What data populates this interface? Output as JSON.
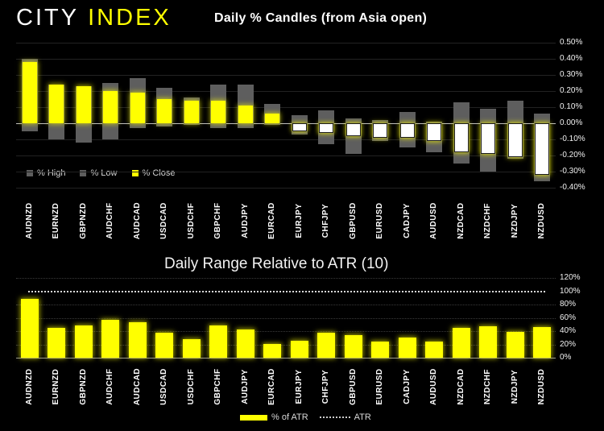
{
  "logo": {
    "part1": "CITY",
    "part2": "INDEX"
  },
  "colors": {
    "background": "#000000",
    "bar_yellow": "#FFFF00",
    "bar_gray": "#5E5E5E",
    "candle_down_fill": "#FFFFFF",
    "zero_line": "#C0C0C0",
    "atr_dotted_line": "#D9D9D9",
    "logo_white": "#FFFFFF",
    "logo_yellow": "#FFFF00"
  },
  "chart_data": [
    {
      "type": "bar",
      "title": "Daily % Candles (from Asia open)",
      "categories": [
        "AUDNZD",
        "EURNZD",
        "GBPNZD",
        "AUDCHF",
        "AUDCAD",
        "USDCAD",
        "USDCHF",
        "GBPCHF",
        "AUDJPY",
        "EURCAD",
        "EURJPY",
        "CHFJPY",
        "GBPUSD",
        "EURUSD",
        "CADJPY",
        "AUDUSD",
        "NZDCAD",
        "NZDCHF",
        "NZDJPY",
        "NZDUSD"
      ],
      "series": [
        {
          "name": "% High",
          "color": "#5E5E5E",
          "values": [
            0.4,
            0.24,
            0.23,
            0.25,
            0.28,
            0.22,
            0.16,
            0.24,
            0.24,
            0.12,
            0.05,
            0.08,
            0.03,
            0.02,
            0.07,
            0.01,
            0.13,
            0.09,
            0.14,
            0.06
          ]
        },
        {
          "name": "% Low",
          "color": "#5E5E5E",
          "values": [
            -0.05,
            -0.1,
            -0.12,
            -0.1,
            -0.03,
            -0.02,
            -0.01,
            -0.03,
            -0.03,
            -0.01,
            -0.07,
            -0.13,
            -0.19,
            -0.11,
            -0.15,
            -0.18,
            -0.25,
            -0.3,
            -0.22,
            -0.36
          ]
        },
        {
          "name": "% Close",
          "color": "#FFFF00",
          "values": [
            0.38,
            0.24,
            0.23,
            0.2,
            0.19,
            0.15,
            0.14,
            0.14,
            0.11,
            0.06,
            -0.05,
            -0.06,
            -0.08,
            -0.09,
            -0.09,
            -0.11,
            -0.18,
            -0.19,
            -0.21,
            -0.32
          ]
        }
      ],
      "ylim": [
        -0.4,
        0.5
      ],
      "yticks": [
        "0.50%",
        "0.40%",
        "0.30%",
        "0.20%",
        "0.10%",
        "0.00%",
        "-0.10%",
        "-0.20%",
        "-0.30%",
        "-0.40%"
      ],
      "grid": true,
      "legend_position": "inside-bottom-left"
    },
    {
      "type": "bar",
      "title": "Daily Range Relative to ATR (10)",
      "categories": [
        "AUDNZD",
        "EURNZD",
        "GBPNZD",
        "AUDCHF",
        "AUDCAD",
        "USDCAD",
        "USDCHF",
        "GBPCHF",
        "AUDJPY",
        "EURCAD",
        "EURJPY",
        "CHFJPY",
        "GBPUSD",
        "EURUSD",
        "CADJPY",
        "AUDUSD",
        "NZDCAD",
        "NZDCHF",
        "NZDJPY",
        "NZDUSD"
      ],
      "series": [
        {
          "name": "% of ATR",
          "color": "#FFFF00",
          "values": [
            88,
            45,
            48,
            57,
            53,
            37,
            28,
            48,
            43,
            21,
            25,
            37,
            34,
            24,
            30,
            24,
            45,
            47,
            39,
            46
          ]
        }
      ],
      "reference_line": {
        "name": "ATR",
        "value": 100,
        "style": "dotted"
      },
      "ylim": [
        0,
        120
      ],
      "yticks": [
        "120%",
        "100%",
        "80%",
        "60%",
        "40%",
        "20%",
        "0%"
      ],
      "grid": true,
      "legend_position": "below-center"
    }
  ]
}
